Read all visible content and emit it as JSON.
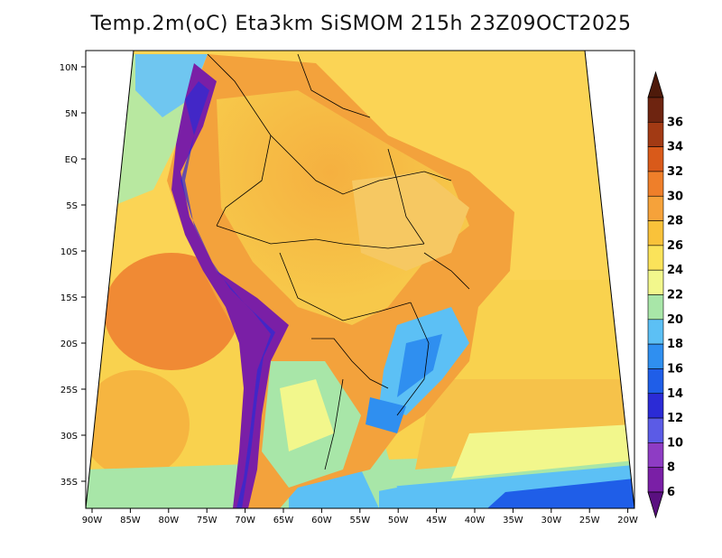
{
  "title": "Temp.2m(oC) Eta3km SiSMOM 215h 23Z09OCT2025",
  "map": {
    "lon_range": [
      -90,
      -20
    ],
    "lat_range": [
      -38,
      12
    ],
    "lon_ticks": [
      "90W",
      "85W",
      "80W",
      "75W",
      "70W",
      "65W",
      "60W",
      "55W",
      "50W",
      "45W",
      "40W",
      "35W",
      "30W",
      "25W",
      "20W"
    ],
    "lat_ticks": [
      "10N",
      "5N",
      "EQ",
      "5S",
      "10S",
      "15S",
      "20S",
      "25S",
      "30S",
      "35S"
    ]
  },
  "colorbar": {
    "labels": [
      "6",
      "8",
      "10",
      "12",
      "14",
      "16",
      "18",
      "20",
      "22",
      "24",
      "26",
      "28",
      "30",
      "32",
      "34",
      "36"
    ],
    "colors": [
      "#7a1fa6",
      "#8e3cc4",
      "#5b5be6",
      "#2b2bd6",
      "#1f5ee8",
      "#2f8ff0",
      "#5cc0f5",
      "#a8e6a8",
      "#f2f78c",
      "#fbe35a",
      "#f9c23a",
      "#f6a23a",
      "#ef7f2a",
      "#d95a1a",
      "#a23a14",
      "#6e2410"
    ],
    "under_color": "#5a1080",
    "over_color": "#4e1a0a"
  }
}
